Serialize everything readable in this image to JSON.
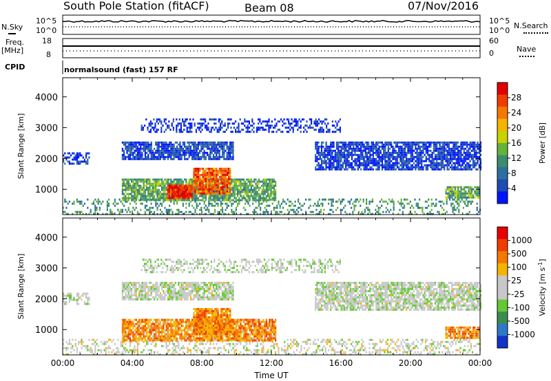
{
  "header": {
    "station": "South Pole Station (fitACF)",
    "beam": "Beam 08",
    "date": "07/Nov/2016"
  },
  "strip_panels": {
    "nsky_label": "N.Sky",
    "nsky_ticks": [
      "10^5",
      "10^0"
    ],
    "nsearch_label": "N.Search",
    "nsearch_ticks": [
      "10^5",
      "10^0"
    ],
    "freq_label_top": "Freq.",
    "freq_label_unit": "[MHz]",
    "freq_ticks": [
      "18",
      "8"
    ],
    "nave_label": "Nave",
    "nave_ticks": [
      "60",
      "0"
    ],
    "cpid_label": "CPID",
    "cpid_value": "normalsound (fast) 157 RF"
  },
  "chart_data": [
    {
      "type": "heatmap",
      "name": "power",
      "ylabel": "Slant Range [km]",
      "ylim": [
        180,
        4620
      ],
      "yticks": [
        "4000",
        "3000",
        "2000",
        "1000"
      ],
      "xlim": [
        0,
        24
      ],
      "colorbar_label": "Power [dB]",
      "colorbar_ticks": [
        "28",
        "24",
        "20",
        "16",
        "12",
        "8",
        "4"
      ],
      "colorbar_colors": [
        "#0014ff",
        "#1e4bb4",
        "#2d6fa0",
        "#3c8c6e",
        "#64b43c",
        "#c8d200",
        "#f5b400",
        "#f57800",
        "#f03c00",
        "#e10000"
      ],
      "features": [
        {
          "t0": 0.0,
          "t1": 24.0,
          "r0": 200,
          "r1": 700,
          "level": 0.35,
          "density": 0.3
        },
        {
          "t0": 3.4,
          "t1": 12.2,
          "r0": 650,
          "r1": 1350,
          "level": 0.4,
          "density": 0.85
        },
        {
          "t0": 6.0,
          "t1": 7.4,
          "r0": 700,
          "r1": 1150,
          "level": 0.92,
          "density": 0.95
        },
        {
          "t0": 7.5,
          "t1": 9.6,
          "r0": 850,
          "r1": 1700,
          "level": 0.8,
          "density": 0.9
        },
        {
          "t0": 22.0,
          "t1": 24.0,
          "r0": 700,
          "r1": 1100,
          "level": 0.4,
          "density": 0.85
        },
        {
          "t0": 0.0,
          "t1": 1.5,
          "r0": 1800,
          "r1": 2200,
          "level": 0.12,
          "density": 0.5
        },
        {
          "t0": 3.4,
          "t1": 9.8,
          "r0": 1950,
          "r1": 2550,
          "level": 0.15,
          "density": 0.8
        },
        {
          "t0": 14.5,
          "t1": 24.0,
          "r0": 1650,
          "r1": 2550,
          "level": 0.12,
          "density": 0.8
        },
        {
          "t0": 4.5,
          "t1": 16.0,
          "r0": 2850,
          "r1": 3300,
          "level": 0.08,
          "density": 0.4
        }
      ]
    },
    {
      "type": "heatmap",
      "name": "velocity",
      "ylabel": "Slant Range [km]",
      "ylim": [
        180,
        4620
      ],
      "yticks": [
        "4000",
        "3000",
        "2000",
        "1000"
      ],
      "xlim": [
        0,
        24
      ],
      "xticks": [
        "00:00",
        "04:00",
        "08:00",
        "12:00",
        "16:00",
        "20:00",
        "00:00"
      ],
      "xlabel": "Time UT",
      "colorbar_label": "Velocity [m s",
      "colorbar_exp": "-1",
      "colorbar_ticks": [
        "1000",
        "500",
        "100",
        "25",
        "-25",
        "-100",
        "-500",
        "-1000"
      ],
      "colorbar_colors": [
        "#1432c8",
        "#2d78c8",
        "#3c8c50",
        "#64c832",
        "#c8c8c8",
        "#c8c8c8",
        "#f5b400",
        "#f57800",
        "#f03c00",
        "#e60000"
      ],
      "features": [
        {
          "t0": 0.0,
          "t1": 24.0,
          "r0": 200,
          "r1": 700,
          "level": 0.5,
          "density": 0.35
        },
        {
          "t0": 3.4,
          "t1": 12.2,
          "r0": 650,
          "r1": 1350,
          "level": 0.72,
          "density": 0.85
        },
        {
          "t0": 7.5,
          "t1": 9.6,
          "r0": 850,
          "r1": 1700,
          "level": 0.74,
          "density": 0.9
        },
        {
          "t0": 22.0,
          "t1": 24.0,
          "r0": 700,
          "r1": 1100,
          "level": 0.72,
          "density": 0.85
        },
        {
          "t0": 0.0,
          "t1": 1.5,
          "r0": 1800,
          "r1": 2200,
          "level": 0.47,
          "density": 0.5
        },
        {
          "t0": 3.4,
          "t1": 9.8,
          "r0": 1950,
          "r1": 2550,
          "level": 0.47,
          "density": 0.8
        },
        {
          "t0": 14.5,
          "t1": 24.0,
          "r0": 1650,
          "r1": 2550,
          "level": 0.47,
          "density": 0.8
        },
        {
          "t0": 4.5,
          "t1": 16.0,
          "r0": 2850,
          "r1": 3300,
          "level": 0.46,
          "density": 0.4
        }
      ]
    }
  ]
}
